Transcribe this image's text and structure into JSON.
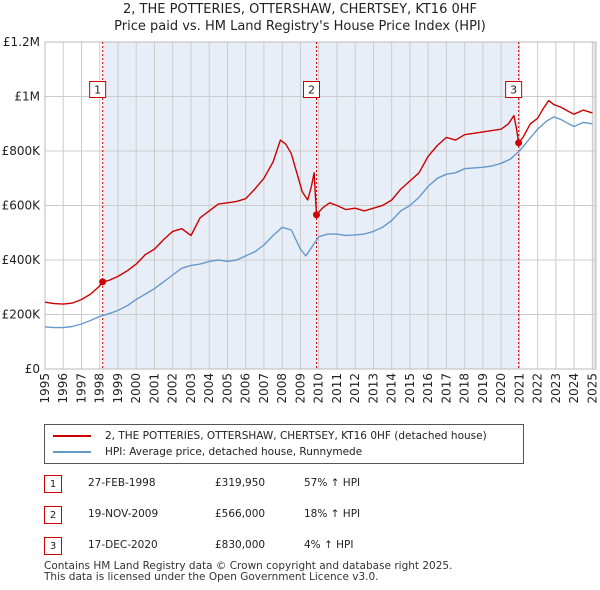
{
  "title_line1": "2, THE POTTERIES, OTTERSHAW, CHERTSEY, KT16 0HF",
  "title_line2": "Price paid vs. HM Land Registry's House Price Index (HPI)",
  "colors": {
    "property": "#cc0000",
    "hpi": "#6699cc",
    "shade": "#e8eef8",
    "grid": "#cccccc",
    "marker_line": "#cc0000"
  },
  "legend": {
    "property_label": "2, THE POTTERIES, OTTERSHAW, CHERTSEY, KT16 0HF (detached house)",
    "hpi_label": "HPI: Average price, detached house, Runnymede"
  },
  "transactions": [
    {
      "num": "1",
      "date": "27-FEB-1998",
      "price": "£319,950",
      "hpi_change": "57% ↑ HPI"
    },
    {
      "num": "2",
      "date": "19-NOV-2009",
      "price": "£566,000",
      "hpi_change": "18% ↑ HPI"
    },
    {
      "num": "3",
      "date": "17-DEC-2020",
      "price": "£830,000",
      "hpi_change": "4% ↑ HPI"
    }
  ],
  "footer": {
    "line1": "Contains HM Land Registry data © Crown copyright and database right 2025.",
    "line2": "This data is licensed under the Open Government Licence v3.0."
  },
  "chart_data": {
    "type": "line",
    "xlim": [
      1995,
      2025.2
    ],
    "ylim": [
      0,
      1200000
    ],
    "x_ticks": [
      1995,
      1996,
      1997,
      1998,
      1999,
      2000,
      2001,
      2002,
      2003,
      2004,
      2005,
      2006,
      2007,
      2008,
      2009,
      2010,
      2011,
      2012,
      2013,
      2014,
      2015,
      2016,
      2017,
      2018,
      2019,
      2020,
      2021,
      2022,
      2023,
      2024,
      2025
    ],
    "y_ticks": [
      {
        "value": 0,
        "label": "£0"
      },
      {
        "value": 200000,
        "label": "£200K"
      },
      {
        "value": 400000,
        "label": "£400K"
      },
      {
        "value": 600000,
        "label": "£600K"
      },
      {
        "value": 800000,
        "label": "£800K"
      },
      {
        "value": 1000000,
        "label": "£1M"
      },
      {
        "value": 1200000,
        "label": "£1.2M"
      }
    ],
    "sales": [
      {
        "label": "1",
        "x": 1998.16,
        "y": 319950
      },
      {
        "label": "2",
        "x": 2009.88,
        "y": 566000
      },
      {
        "label": "3",
        "x": 2020.96,
        "y": 830000
      }
    ],
    "series": [
      {
        "name": "2, THE POTTERIES, OTTERSHAW, CHERTSEY, KT16 0HF (detached house)",
        "color": "#cc0000",
        "points": [
          [
            1995.0,
            245000
          ],
          [
            1995.5,
            240000
          ],
          [
            1996.0,
            238000
          ],
          [
            1996.5,
            242000
          ],
          [
            1997.0,
            255000
          ],
          [
            1997.5,
            275000
          ],
          [
            1998.0,
            305000
          ],
          [
            1998.16,
            319950
          ],
          [
            1998.5,
            325000
          ],
          [
            1999.0,
            340000
          ],
          [
            1999.5,
            360000
          ],
          [
            2000.0,
            385000
          ],
          [
            2000.5,
            420000
          ],
          [
            2001.0,
            440000
          ],
          [
            2001.5,
            475000
          ],
          [
            2002.0,
            505000
          ],
          [
            2002.5,
            515000
          ],
          [
            2003.0,
            490000
          ],
          [
            2003.5,
            555000
          ],
          [
            2004.0,
            580000
          ],
          [
            2004.5,
            605000
          ],
          [
            2005.0,
            610000
          ],
          [
            2005.5,
            615000
          ],
          [
            2006.0,
            625000
          ],
          [
            2006.5,
            660000
          ],
          [
            2007.0,
            700000
          ],
          [
            2007.5,
            760000
          ],
          [
            2007.9,
            840000
          ],
          [
            2008.2,
            825000
          ],
          [
            2008.5,
            790000
          ],
          [
            2008.8,
            720000
          ],
          [
            2009.1,
            650000
          ],
          [
            2009.4,
            620000
          ],
          [
            2009.6,
            670000
          ],
          [
            2009.75,
            720000
          ],
          [
            2009.88,
            566000
          ],
          [
            2010.2,
            590000
          ],
          [
            2010.6,
            610000
          ],
          [
            2011.0,
            600000
          ],
          [
            2011.5,
            585000
          ],
          [
            2012.0,
            590000
          ],
          [
            2012.5,
            580000
          ],
          [
            2013.0,
            590000
          ],
          [
            2013.5,
            600000
          ],
          [
            2014.0,
            620000
          ],
          [
            2014.5,
            660000
          ],
          [
            2015.0,
            690000
          ],
          [
            2015.5,
            720000
          ],
          [
            2016.0,
            780000
          ],
          [
            2016.5,
            820000
          ],
          [
            2017.0,
            850000
          ],
          [
            2017.5,
            840000
          ],
          [
            2018.0,
            860000
          ],
          [
            2018.5,
            865000
          ],
          [
            2019.0,
            870000
          ],
          [
            2019.5,
            875000
          ],
          [
            2020.0,
            880000
          ],
          [
            2020.4,
            900000
          ],
          [
            2020.7,
            930000
          ],
          [
            2020.85,
            880000
          ],
          [
            2020.96,
            830000
          ],
          [
            2021.2,
            850000
          ],
          [
            2021.6,
            900000
          ],
          [
            2022.0,
            920000
          ],
          [
            2022.3,
            955000
          ],
          [
            2022.6,
            985000
          ],
          [
            2022.9,
            970000
          ],
          [
            2023.3,
            960000
          ],
          [
            2023.7,
            945000
          ],
          [
            2024.0,
            935000
          ],
          [
            2024.5,
            950000
          ],
          [
            2025.0,
            940000
          ]
        ]
      },
      {
        "name": "HPI: Average price, detached house, Runnymede",
        "color": "#6699cc",
        "points": [
          [
            1995.0,
            155000
          ],
          [
            1995.5,
            152000
          ],
          [
            1996.0,
            152000
          ],
          [
            1996.5,
            156000
          ],
          [
            1997.0,
            165000
          ],
          [
            1997.5,
            178000
          ],
          [
            1998.0,
            193000
          ],
          [
            1998.5,
            203000
          ],
          [
            1999.0,
            215000
          ],
          [
            1999.5,
            232000
          ],
          [
            2000.0,
            255000
          ],
          [
            2000.5,
            275000
          ],
          [
            2001.0,
            295000
          ],
          [
            2001.5,
            320000
          ],
          [
            2002.0,
            345000
          ],
          [
            2002.5,
            370000
          ],
          [
            2003.0,
            380000
          ],
          [
            2003.5,
            385000
          ],
          [
            2004.0,
            395000
          ],
          [
            2004.5,
            400000
          ],
          [
            2005.0,
            395000
          ],
          [
            2005.5,
            400000
          ],
          [
            2006.0,
            415000
          ],
          [
            2006.5,
            430000
          ],
          [
            2007.0,
            455000
          ],
          [
            2007.5,
            490000
          ],
          [
            2008.0,
            520000
          ],
          [
            2008.5,
            510000
          ],
          [
            2009.0,
            440000
          ],
          [
            2009.3,
            415000
          ],
          [
            2009.7,
            455000
          ],
          [
            2010.0,
            485000
          ],
          [
            2010.5,
            495000
          ],
          [
            2011.0,
            495000
          ],
          [
            2011.5,
            490000
          ],
          [
            2012.0,
            492000
          ],
          [
            2012.5,
            495000
          ],
          [
            2013.0,
            505000
          ],
          [
            2013.5,
            520000
          ],
          [
            2014.0,
            545000
          ],
          [
            2014.5,
            580000
          ],
          [
            2015.0,
            600000
          ],
          [
            2015.5,
            630000
          ],
          [
            2016.0,
            670000
          ],
          [
            2016.5,
            700000
          ],
          [
            2017.0,
            715000
          ],
          [
            2017.5,
            720000
          ],
          [
            2018.0,
            735000
          ],
          [
            2018.5,
            738000
          ],
          [
            2019.0,
            740000
          ],
          [
            2019.5,
            745000
          ],
          [
            2020.0,
            755000
          ],
          [
            2020.5,
            770000
          ],
          [
            2021.0,
            800000
          ],
          [
            2021.5,
            840000
          ],
          [
            2022.0,
            880000
          ],
          [
            2022.5,
            910000
          ],
          [
            2022.9,
            925000
          ],
          [
            2023.3,
            915000
          ],
          [
            2023.7,
            900000
          ],
          [
            2024.0,
            890000
          ],
          [
            2024.5,
            905000
          ],
          [
            2025.0,
            900000
          ]
        ]
      }
    ]
  }
}
